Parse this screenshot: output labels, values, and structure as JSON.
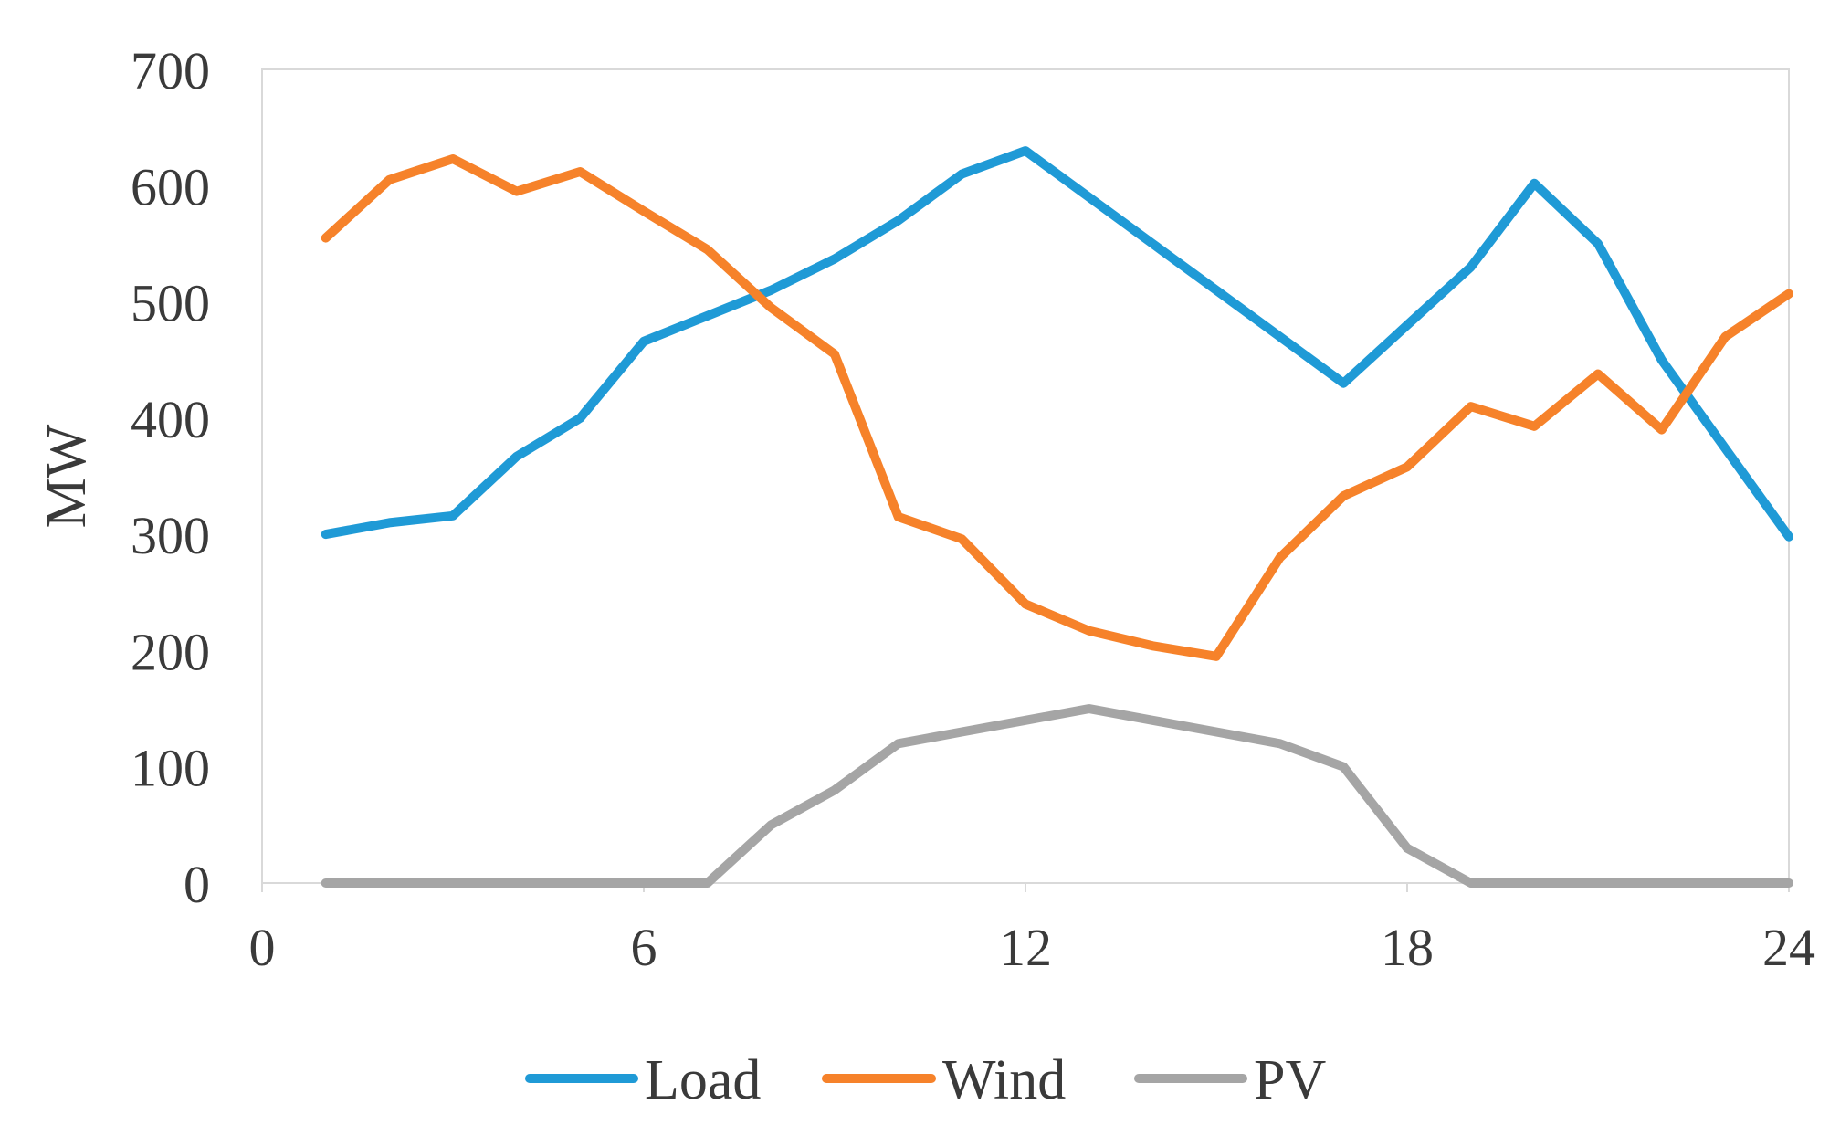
{
  "chart_data": {
    "type": "line",
    "title": "",
    "xlabel": "",
    "ylabel": "MW",
    "xlim": [
      0,
      24
    ],
    "ylim": [
      0,
      700
    ],
    "xticks": [
      0,
      6,
      12,
      18,
      24
    ],
    "yticks": [
      0,
      100,
      200,
      300,
      400,
      500,
      600,
      700
    ],
    "x": [
      1,
      2,
      3,
      4,
      5,
      6,
      7,
      8,
      9,
      10,
      11,
      12,
      13,
      14,
      15,
      16,
      17,
      18,
      19,
      20,
      21,
      22,
      23,
      24
    ],
    "series": [
      {
        "name": "Load",
        "color": "#1f9ad6",
        "values": [
          300,
          310,
          316,
          367,
          400,
          466,
          488,
          510,
          537,
          570,
          610,
          630,
          590,
          550,
          510,
          470,
          430,
          480,
          530,
          602,
          550,
          450,
          374,
          298
        ]
      },
      {
        "name": "Wind",
        "color": "#f6822a",
        "values": [
          555,
          605,
          623,
          595,
          612,
          578,
          545,
          495,
          455,
          315,
          296,
          240,
          217,
          204,
          195,
          280,
          333,
          358,
          410,
          393,
          438,
          390,
          470,
          507
        ]
      },
      {
        "name": "PV",
        "color": "#a5a5a5",
        "values": [
          0,
          0,
          0,
          0,
          0,
          0,
          0,
          50,
          80,
          120,
          130,
          140,
          150,
          140,
          130,
          120,
          100,
          30,
          0,
          0,
          0,
          0,
          0,
          0
        ]
      }
    ],
    "legend": {
      "position": "bottom-center",
      "entries": [
        "Load",
        "Wind",
        "PV"
      ]
    },
    "grid": false,
    "frame_color": "#d9d9d9"
  }
}
